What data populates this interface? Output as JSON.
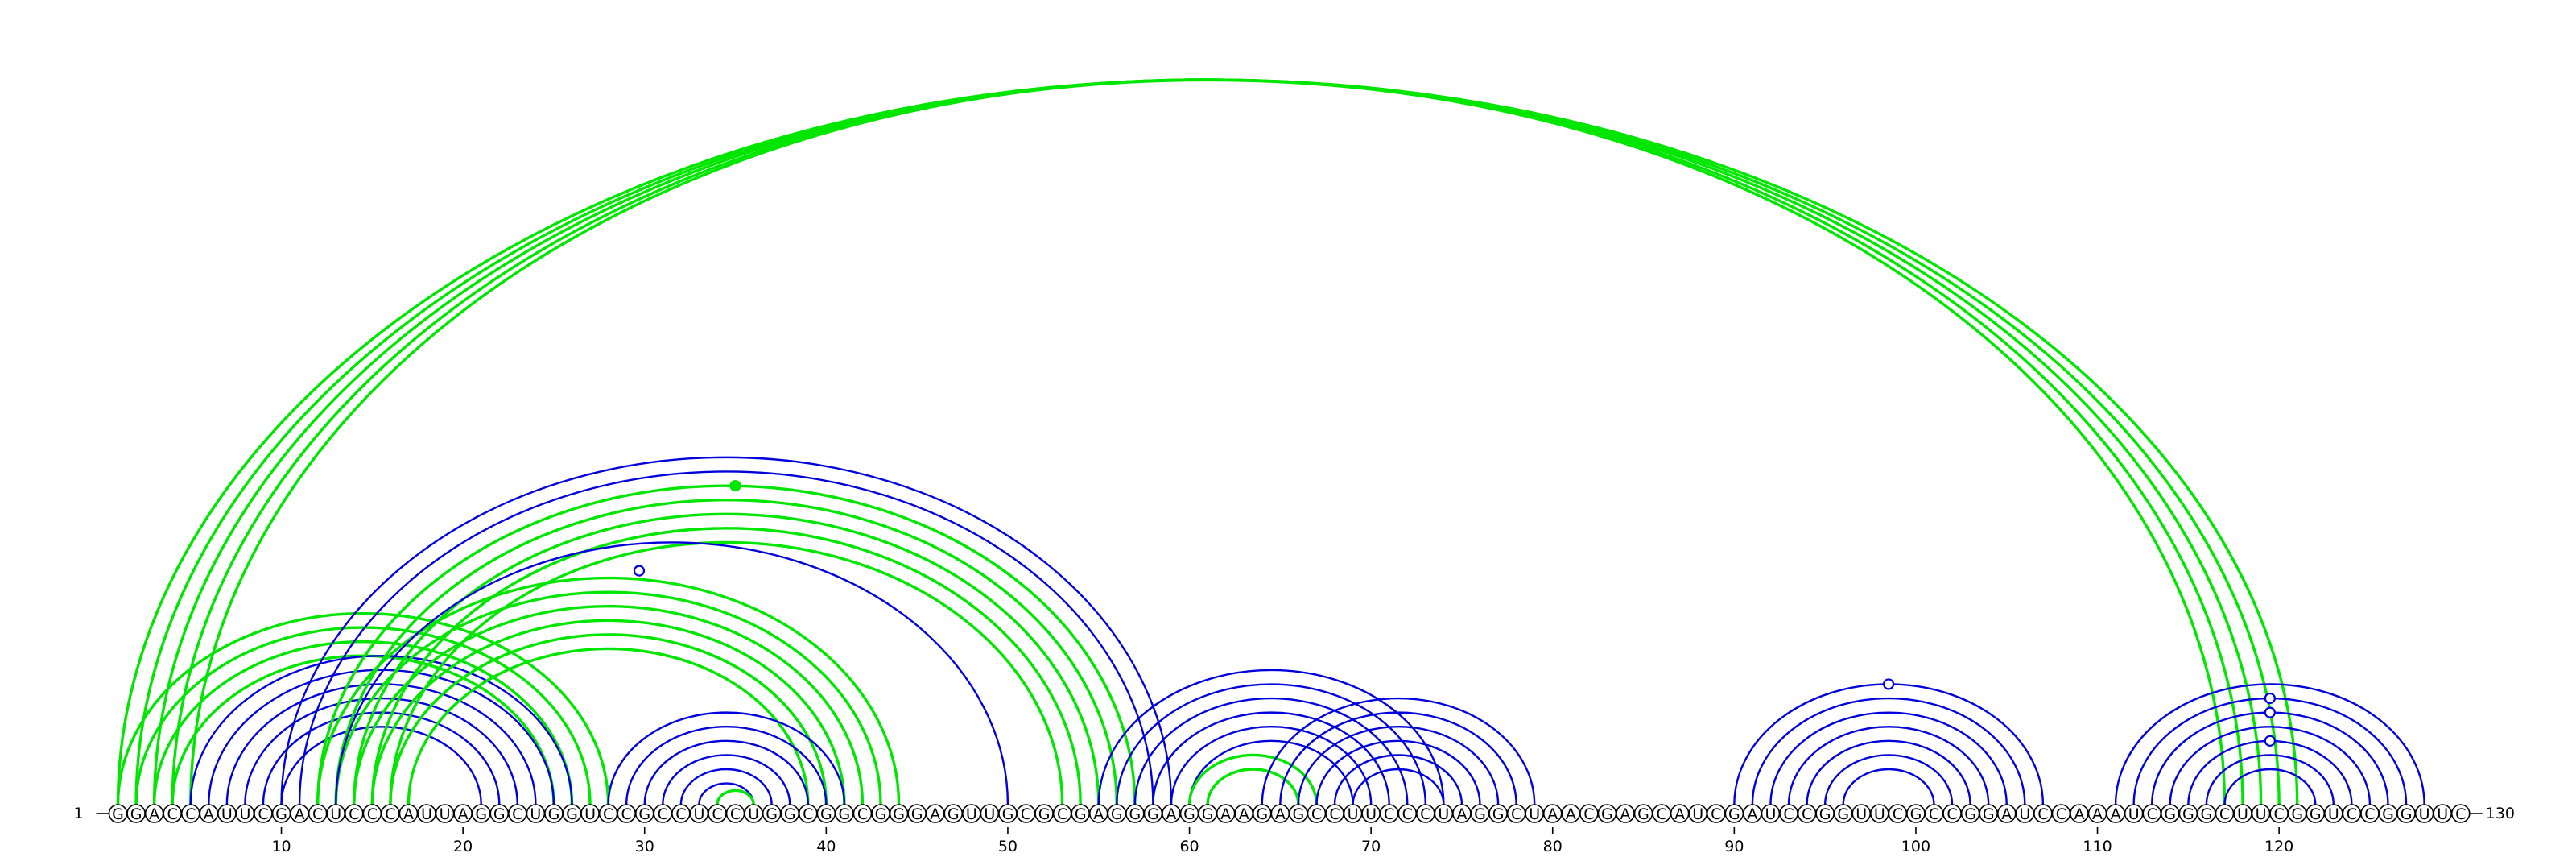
{
  "sequence": {
    "text": "GGACCAUUCGACUCCCAUUAGGCUGGUCCGCCUCCUGGCGGCGGGAGUUGCGCGAGGGAGGAAGAGCCUUCCCUAGGCUAACGAGCAUCGAUCCGGUUCGCCGGAUCCAAAUCGGGCUUCGGUCCGGUUC",
    "start_label": "1",
    "end_label": "130",
    "ticks": [
      10,
      20,
      30,
      40,
      50,
      60,
      70,
      80,
      90,
      100,
      110,
      120
    ]
  },
  "colors": {
    "green": "#00e600",
    "blue": "#0000dd",
    "line": "#000000"
  },
  "helices": [
    {
      "color": "green",
      "i": 1,
      "j": 121,
      "n": 5
    },
    {
      "color": "green",
      "i": 1,
      "j": 28,
      "n": 4
    },
    {
      "color": "blue",
      "i": 5,
      "j": 26,
      "n": 6
    },
    {
      "color": "green",
      "i": 12,
      "j": 44,
      "n": 6
    },
    {
      "color": "blue",
      "i": 10,
      "j": 59,
      "n": 6
    },
    {
      "color": "green",
      "i": 12,
      "j": 57,
      "n": 5
    },
    {
      "color": "blue",
      "i": 13,
      "j": 50,
      "n": 1
    },
    {
      "color": "blue",
      "i": 28,
      "j": 41,
      "n": 6
    },
    {
      "color": "green",
      "i": 34,
      "j": 36,
      "n": 1
    },
    {
      "color": "blue",
      "i": 55,
      "j": 74,
      "n": 6
    },
    {
      "color": "green",
      "i": 60,
      "j": 67,
      "n": 2
    },
    {
      "color": "blue",
      "i": 64,
      "j": 79,
      "n": 6
    },
    {
      "color": "blue",
      "i": 90,
      "j": 107,
      "n": 7
    },
    {
      "color": "blue",
      "i": 111,
      "j": 128,
      "n": 7
    }
  ],
  "markers": [
    {
      "position": 29.7,
      "radius": 2,
      "fill": "white",
      "color": "blue"
    },
    {
      "position": 35,
      "radius": 0,
      "fill": "solid",
      "color": "green"
    },
    {
      "position": 98.5,
      "radius": 0,
      "fill": "white",
      "color": "blue"
    },
    {
      "position": 119.5,
      "radius": 1,
      "fill": "white",
      "color": "blue"
    },
    {
      "position": 119.5,
      "radius": 2,
      "fill": "white",
      "color": "blue"
    },
    {
      "position": 119.5,
      "radius": 4,
      "fill": "white",
      "color": "blue"
    }
  ]
}
